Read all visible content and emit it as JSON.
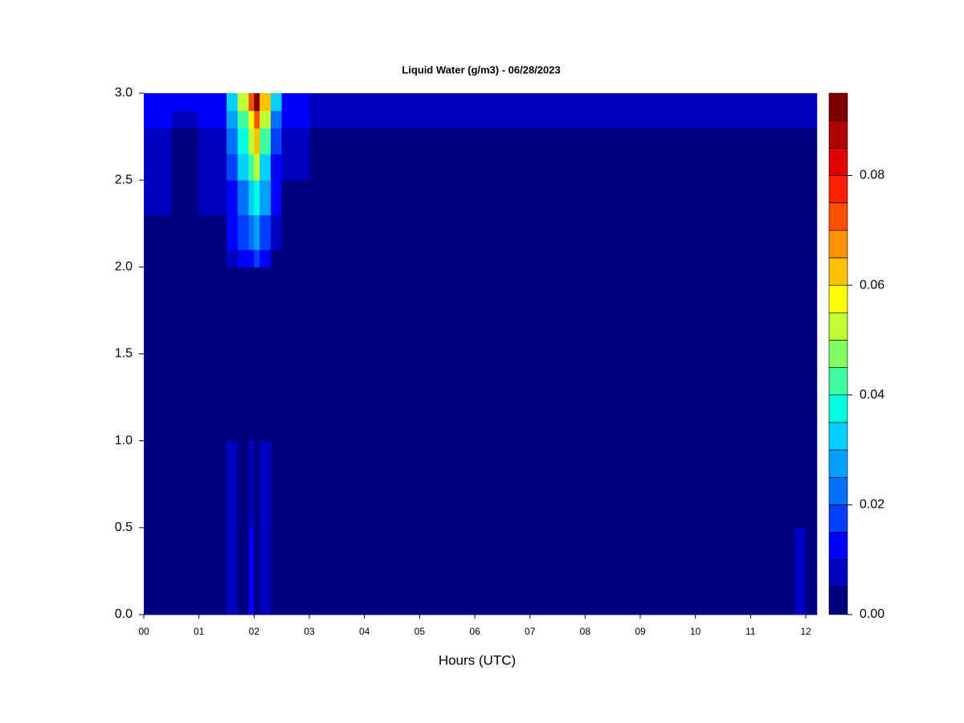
{
  "chart_data": {
    "type": "heatmap",
    "title": "Liquid Water (g/m3) - 06/28/2023",
    "x_label": "Hours (UTC)",
    "xlim": [
      0,
      12.2
    ],
    "ylim": [
      0,
      3.0
    ],
    "xticks": [
      {
        "value": 0,
        "label": "00"
      },
      {
        "value": 1,
        "label": "01"
      },
      {
        "value": 2,
        "label": "02"
      },
      {
        "value": 3,
        "label": "03"
      },
      {
        "value": 4,
        "label": "04"
      },
      {
        "value": 5,
        "label": "05"
      },
      {
        "value": 6,
        "label": "06"
      },
      {
        "value": 7,
        "label": "07"
      },
      {
        "value": 8,
        "label": "08"
      },
      {
        "value": 9,
        "label": "09"
      },
      {
        "value": 10,
        "label": "10"
      },
      {
        "value": 11,
        "label": "11"
      },
      {
        "value": 12,
        "label": "12"
      }
    ],
    "yticks": [
      {
        "value": 0,
        "label": "0.0"
      },
      0.5,
      {
        "value": 1,
        "label": "1.0"
      },
      1.5,
      {
        "value": 2,
        "label": "2.0"
      },
      2.5,
      {
        "value": 3,
        "label": "3.0"
      }
    ],
    "x_edges": [
      0,
      0.5,
      1,
      1.5,
      1.7,
      1.9,
      2.0,
      2.1,
      2.3,
      2.5,
      3,
      4.5,
      4.8,
      11.8,
      12,
      12.2
    ],
    "y_edges": [
      0,
      0.5,
      1.0,
      2.0,
      2.1,
      2.3,
      2.5,
      2.65,
      2.8,
      2.9,
      3.0
    ],
    "z": [
      [
        0,
        0,
        0,
        0.006,
        0.003,
        0.012,
        0.003,
        0.008,
        0,
        0,
        0,
        0,
        0,
        0.006,
        0
      ],
      [
        0,
        0,
        0,
        0.006,
        0.002,
        0.008,
        0.002,
        0.006,
        0,
        0,
        0,
        0,
        0,
        0.002,
        0
      ],
      [
        0,
        0,
        0,
        0,
        0,
        0.003,
        0.004,
        0,
        0,
        0,
        0,
        0,
        0,
        0.004,
        0
      ],
      [
        0,
        0,
        0,
        0.006,
        0.01,
        0.014,
        0.016,
        0.01,
        0,
        0,
        0,
        0,
        0,
        0,
        0
      ],
      [
        0,
        0,
        0,
        0.01,
        0.016,
        0.022,
        0.026,
        0.016,
        0.006,
        0,
        0,
        0,
        0,
        0,
        0
      ],
      [
        0.006,
        0.002,
        0.006,
        0.014,
        0.024,
        0.034,
        0.038,
        0.026,
        0.01,
        0.004,
        0,
        0.002,
        0,
        0,
        0
      ],
      [
        0.006,
        0.002,
        0.006,
        0.018,
        0.03,
        0.042,
        0.05,
        0.034,
        0.014,
        0.006,
        0,
        0.002,
        0,
        0,
        0
      ],
      [
        0.008,
        0.002,
        0.008,
        0.022,
        0.036,
        0.05,
        0.06,
        0.042,
        0.018,
        0.008,
        0.002,
        0.002,
        0,
        0,
        0
      ],
      [
        0.01,
        0.008,
        0.01,
        0.028,
        0.042,
        0.058,
        0.072,
        0.05,
        0.024,
        0.01,
        0.006,
        0.006,
        0.006,
        0.006,
        0.006
      ],
      [
        0.014,
        0.01,
        0.012,
        0.034,
        0.05,
        0.07,
        0.09,
        0.06,
        0.03,
        0.012,
        0.008,
        0.008,
        0.008,
        0.008,
        0.008
      ]
    ],
    "levels": [
      0,
      0.005,
      0.01,
      0.015,
      0.02,
      0.025,
      0.03,
      0.035,
      0.04,
      0.045,
      0.05,
      0.055,
      0.06,
      0.065,
      0.07,
      0.075,
      0.08,
      0.085,
      0.09,
      0.095
    ],
    "colors": [
      "#000080",
      "#0000c0",
      "#0000ff",
      "#0040ff",
      "#0070ff",
      "#00a0ff",
      "#00d0ff",
      "#00ffe0",
      "#40ffa0",
      "#80ff60",
      "#c0ff30",
      "#ffff00",
      "#ffc000",
      "#ff9000",
      "#ff5000",
      "#ff2000",
      "#e00000",
      "#b00000",
      "#800000"
    ],
    "colorbar_ticks": [
      {
        "value": 0,
        "label": "0.00"
      },
      {
        "value": 0.02,
        "label": "0.02"
      },
      {
        "value": 0.04,
        "label": "0.04"
      },
      {
        "value": 0.06,
        "label": "0.06"
      },
      {
        "value": 0.08,
        "label": "0.08"
      }
    ]
  }
}
